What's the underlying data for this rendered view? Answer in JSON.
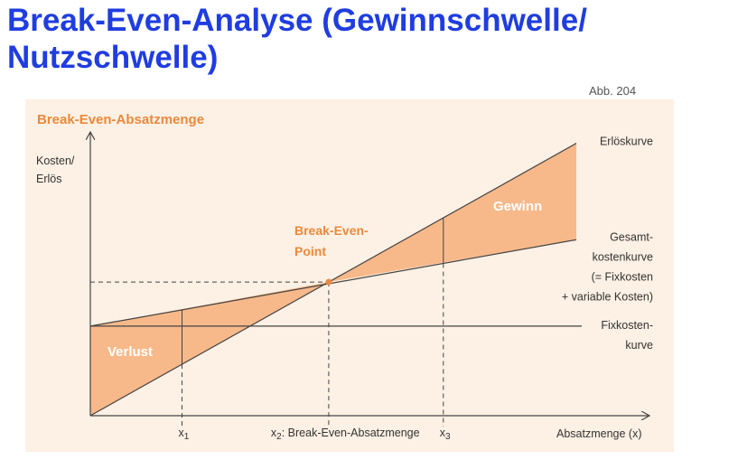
{
  "page": {
    "title": "Break-Even-Analyse (Gewinnschwelle/ Nutzschwelle)",
    "figure_ref": "Abb. 204"
  },
  "chart_data": {
    "type": "line",
    "title": "Break-Even-Absatzmenge",
    "ylabel_line1": "Kosten/",
    "ylabel_line2": "Erlös",
    "xlabel": "Absatzmenge (x)",
    "x_ticks": [
      {
        "label": "x",
        "sub": "1",
        "x": 1
      },
      {
        "label": "x",
        "sub": "2",
        "suffix": ": Break-Even-Absatzmenge",
        "x": 2.6
      },
      {
        "label": "x",
        "sub": "3",
        "x": 3.85
      }
    ],
    "xlim": [
      0,
      5.3
    ],
    "ylim": [
      0,
      6
    ],
    "series": [
      {
        "name": "Erlöskurve",
        "x": [
          0,
          5.3
        ],
        "y": [
          0,
          5.93
        ]
      },
      {
        "name_lines": [
          "Gesamt-",
          "kostenkurve",
          "(= Fixkosten",
          "+ variable Kosten)"
        ],
        "x": [
          0,
          5.3
        ],
        "y": [
          1.95,
          3.83
        ]
      },
      {
        "name_lines": [
          "Fixkosten-",
          "kurve"
        ],
        "x": [
          0,
          5.3
        ],
        "y": [
          1.95,
          1.95
        ]
      }
    ],
    "break_even": {
      "x": 2.6,
      "y": 2.91,
      "label_line1": "Break-Even-",
      "label_line2": "Point"
    },
    "regions": {
      "loss_label": "Verlust",
      "profit_label": "Gewinn"
    },
    "colors": {
      "fill": "#f7b98a",
      "accent": "#e98a3c",
      "line": "#444444",
      "background": "#fdf0e4"
    }
  }
}
